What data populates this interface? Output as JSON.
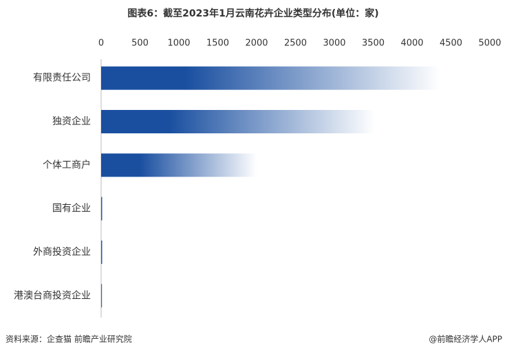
{
  "chart_data": {
    "type": "bar",
    "orientation": "horizontal",
    "title": "图表6：截至2023年1月云南花卉企业类型分布(单位：家)",
    "categories": [
      "有限责任公司",
      "独资企业",
      "个体工商户",
      "国有企业",
      "外商投资企业",
      "港澳台商投资企业"
    ],
    "values": [
      4360,
      3520,
      2000,
      20,
      20,
      15
    ],
    "color": "#1a4fa0",
    "xlim": [
      0,
      5000
    ],
    "xticks": [
      0,
      500,
      1000,
      1500,
      2000,
      2500,
      3000,
      3500,
      4000,
      4500,
      5000
    ],
    "source": "资料来源：企查猫 前瞻产业研究院",
    "credit": "@前瞻经济学人APP"
  }
}
